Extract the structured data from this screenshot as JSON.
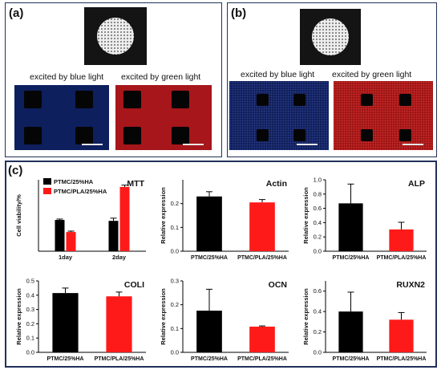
{
  "panel_a": {
    "label": "(a)",
    "caption_blue": "excited by blue light",
    "caption_green": "excited by green light"
  },
  "panel_b": {
    "label": "(b)",
    "caption_blue": "excited by blue light",
    "caption_green": "excited by green light"
  },
  "panel_c": {
    "label": "(c)"
  },
  "colors": {
    "black_series": "#000000",
    "red_series": "#ff1a1a"
  },
  "chart_data": [
    {
      "id": "mtt",
      "type": "bar",
      "title": "MTT",
      "ylabel": "Cell viability/%",
      "categories": [
        "1day",
        "2day"
      ],
      "ylim": [
        0,
        160
      ],
      "series": [
        {
          "name": "PTMC/25%HA",
          "values": [
            70,
            68
          ],
          "errors": [
            2,
            6
          ]
        },
        {
          "name": "PTMC/PLA/25%HA",
          "values": [
            43,
            144
          ],
          "errors": [
            2,
            4
          ]
        }
      ],
      "legend": "top-left"
    },
    {
      "id": "actin",
      "type": "bar",
      "title": "Actin",
      "ylabel": "Relative expression",
      "categories": [
        "PTMC/25%HA",
        "PTMC/PLA/25%HA"
      ],
      "yticks": [
        "0.0",
        "0.1",
        "0.2"
      ],
      "ylim": [
        0,
        0.3
      ],
      "values": [
        0.23,
        0.205
      ],
      "errors": [
        0.02,
        0.012
      ]
    },
    {
      "id": "alp",
      "type": "bar",
      "title": "ALP",
      "ylabel": "Relative expression",
      "categories": [
        "PTMC/25%HA",
        "PTMC/PLA/25%HA"
      ],
      "yticks": [
        "0.0",
        "0.2",
        "0.4",
        "0.6",
        "0.8",
        "1.0"
      ],
      "ylim": [
        0,
        1.0
      ],
      "values": [
        0.67,
        0.305
      ],
      "errors": [
        0.27,
        0.1
      ]
    },
    {
      "id": "coli",
      "type": "bar",
      "title": "COLI",
      "ylabel": "Relative expression",
      "categories": [
        "PTMC/25%HA",
        "PTMC/PLA/25%HA"
      ],
      "yticks": [
        "0.0",
        "0.1",
        "0.2",
        "0.3",
        "0.4",
        "0.5"
      ],
      "ylim": [
        0,
        0.5
      ],
      "values": [
        0.415,
        0.392
      ],
      "errors": [
        0.035,
        0.03
      ]
    },
    {
      "id": "ocn",
      "type": "bar",
      "title": "OCN",
      "ylabel": "Relative expression",
      "categories": [
        "PTMC/25%HA",
        "PTMC/PLA/25%HA"
      ],
      "yticks": [
        "0.0",
        "0.1",
        "0.2",
        "0.3"
      ],
      "ylim": [
        0,
        0.3
      ],
      "values": [
        0.175,
        0.108
      ],
      "errors": [
        0.09,
        0.003
      ]
    },
    {
      "id": "ruxn2",
      "type": "bar",
      "title": "RUXN2",
      "ylabel": "Relative expression",
      "categories": [
        "PTMC/25%HA",
        "PTMC/PLA/25%HA"
      ],
      "yticks": [
        "0.0",
        "0.2",
        "0.4",
        "0.6"
      ],
      "ylim": [
        0,
        0.7
      ],
      "values": [
        0.4,
        0.32
      ],
      "errors": [
        0.19,
        0.07
      ]
    }
  ]
}
